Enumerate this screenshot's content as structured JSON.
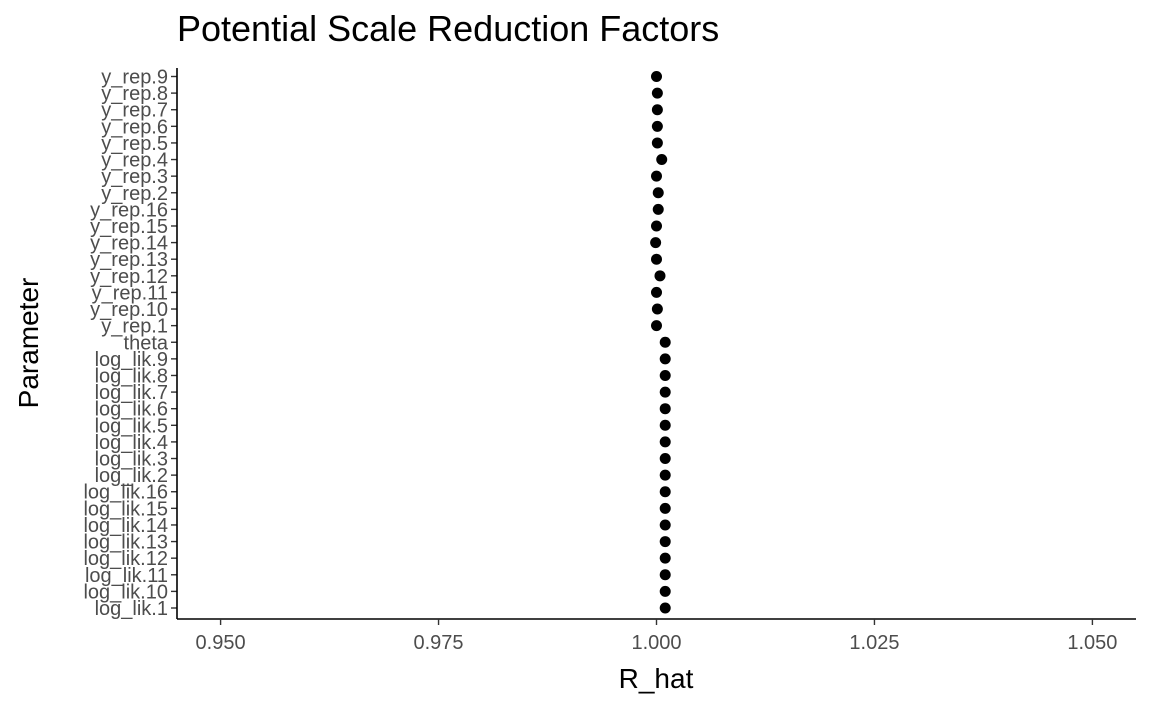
{
  "chart_data": {
    "type": "scatter",
    "title": "Potential Scale Reduction Factors",
    "xlabel": "R_hat",
    "ylabel": "Parameter",
    "xlim": [
      0.945,
      1.055
    ],
    "x_ticks": [
      "0.950",
      "0.975",
      "1.000",
      "1.025",
      "1.050"
    ],
    "x_tick_values": [
      0.95,
      0.975,
      1.0,
      1.025,
      1.05
    ],
    "grid": false,
    "legend": "none",
    "point_color": "#000000",
    "categories": [
      "y_rep.9",
      "y_rep.8",
      "y_rep.7",
      "y_rep.6",
      "y_rep.5",
      "y_rep.4",
      "y_rep.3",
      "y_rep.2",
      "y_rep.16",
      "y_rep.15",
      "y_rep.14",
      "y_rep.13",
      "y_rep.12",
      "y_rep.11",
      "y_rep.10",
      "y_rep.1",
      "theta",
      "log_lik.9",
      "log_lik.8",
      "log_lik.7",
      "log_lik.6",
      "log_lik.5",
      "log_lik.4",
      "log_lik.3",
      "log_lik.2",
      "log_lik.16",
      "log_lik.15",
      "log_lik.14",
      "log_lik.13",
      "log_lik.12",
      "log_lik.11",
      "log_lik.10",
      "log_lik.1"
    ],
    "values": [
      1.0,
      1.0001,
      1.0001,
      1.0001,
      1.0001,
      1.0006,
      1.0,
      1.0002,
      1.0002,
      1.0,
      0.9999,
      1.0,
      1.0004,
      1.0,
      1.0001,
      1.0,
      1.001,
      1.001,
      1.001,
      1.001,
      1.001,
      1.001,
      1.001,
      1.001,
      1.001,
      1.001,
      1.001,
      1.001,
      1.001,
      1.001,
      1.001,
      1.001,
      1.001
    ]
  }
}
